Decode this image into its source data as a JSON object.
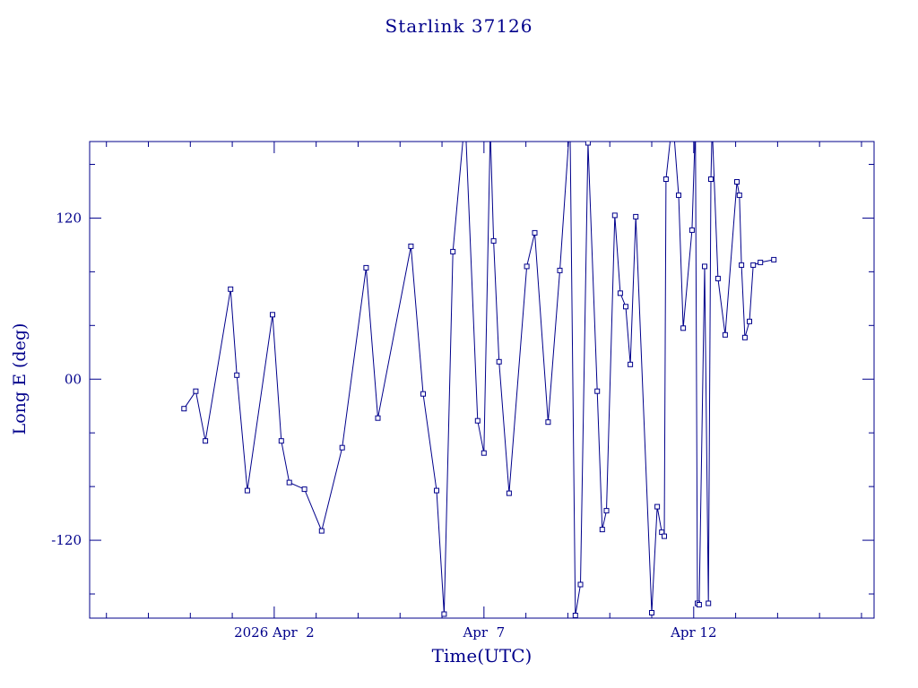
{
  "page": {
    "background": "#ffffff"
  },
  "chart_data": {
    "type": "line",
    "title": "Starlink 37126",
    "xlabel": "Time(UTC)",
    "ylabel": "Long E (deg)",
    "x_encoding": "decimal day of April 2026 (UTC), Apr 2 = 2.0",
    "xlim": [
      -2.4,
      16.3
    ],
    "ylim": [
      -178,
      177
    ],
    "x_ticks": [
      {
        "t": 2,
        "label": "2026 Apr  2"
      },
      {
        "t": 7,
        "label": "Apr  7"
      },
      {
        "t": 12,
        "label": "Apr 12"
      }
    ],
    "x_minor_step": 1,
    "y_ticks": [
      {
        "v": 120,
        "label": "120"
      },
      {
        "v": 0,
        "label": "00"
      },
      {
        "v": -120,
        "label": "-120"
      }
    ],
    "y_minor_step": 40,
    "axis_color": "#00008B",
    "line_color": "#00008B",
    "marker": "open-square",
    "grid": false,
    "legend": "none",
    "points": [
      [
        -0.15,
        -22
      ],
      [
        0.13,
        -9
      ],
      [
        0.36,
        -46
      ],
      [
        0.96,
        67
      ],
      [
        1.11,
        3
      ],
      [
        1.36,
        -83
      ],
      [
        1.96,
        48
      ],
      [
        2.17,
        -46
      ],
      [
        2.36,
        -77
      ],
      [
        2.72,
        -82
      ],
      [
        3.13,
        -113
      ],
      [
        3.62,
        -51
      ],
      [
        4.19,
        83
      ],
      [
        4.47,
        -29
      ],
      [
        5.26,
        99
      ],
      [
        5.55,
        -11
      ],
      [
        5.87,
        -83
      ],
      [
        6.05,
        -175
      ],
      [
        6.26,
        95
      ],
      [
        6.55,
        196
      ],
      [
        6.85,
        -31
      ],
      [
        7.0,
        -55
      ],
      [
        7.15,
        186
      ],
      [
        7.23,
        103
      ],
      [
        7.36,
        13
      ],
      [
        7.6,
        -85
      ],
      [
        8.02,
        84
      ],
      [
        8.21,
        109
      ],
      [
        8.53,
        -32
      ],
      [
        8.81,
        81
      ],
      [
        9.05,
        192
      ],
      [
        9.18,
        -176
      ],
      [
        9.3,
        -153
      ],
      [
        9.48,
        176
      ],
      [
        9.7,
        -9
      ],
      [
        9.82,
        -112
      ],
      [
        9.92,
        -98
      ],
      [
        10.12,
        122
      ],
      [
        10.25,
        64
      ],
      [
        10.38,
        54
      ],
      [
        10.49,
        11
      ],
      [
        10.62,
        121
      ],
      [
        11.0,
        -174
      ],
      [
        11.13,
        -95
      ],
      [
        11.24,
        -114
      ],
      [
        11.3,
        -117
      ],
      [
        11.34,
        149
      ],
      [
        11.5,
        195
      ],
      [
        11.64,
        137
      ],
      [
        11.75,
        38
      ],
      [
        11.96,
        111
      ],
      [
        12.04,
        190
      ],
      [
        12.09,
        -167
      ],
      [
        12.13,
        -168
      ],
      [
        12.26,
        84
      ],
      [
        12.35,
        -167
      ],
      [
        12.41,
        149
      ],
      [
        12.44,
        188
      ],
      [
        12.58,
        75
      ],
      [
        12.75,
        33
      ],
      [
        13.03,
        147
      ],
      [
        13.09,
        137
      ],
      [
        13.14,
        85
      ],
      [
        13.22,
        31
      ],
      [
        13.33,
        43
      ],
      [
        13.42,
        85
      ],
      [
        13.59,
        87
      ],
      [
        13.91,
        89
      ]
    ]
  }
}
